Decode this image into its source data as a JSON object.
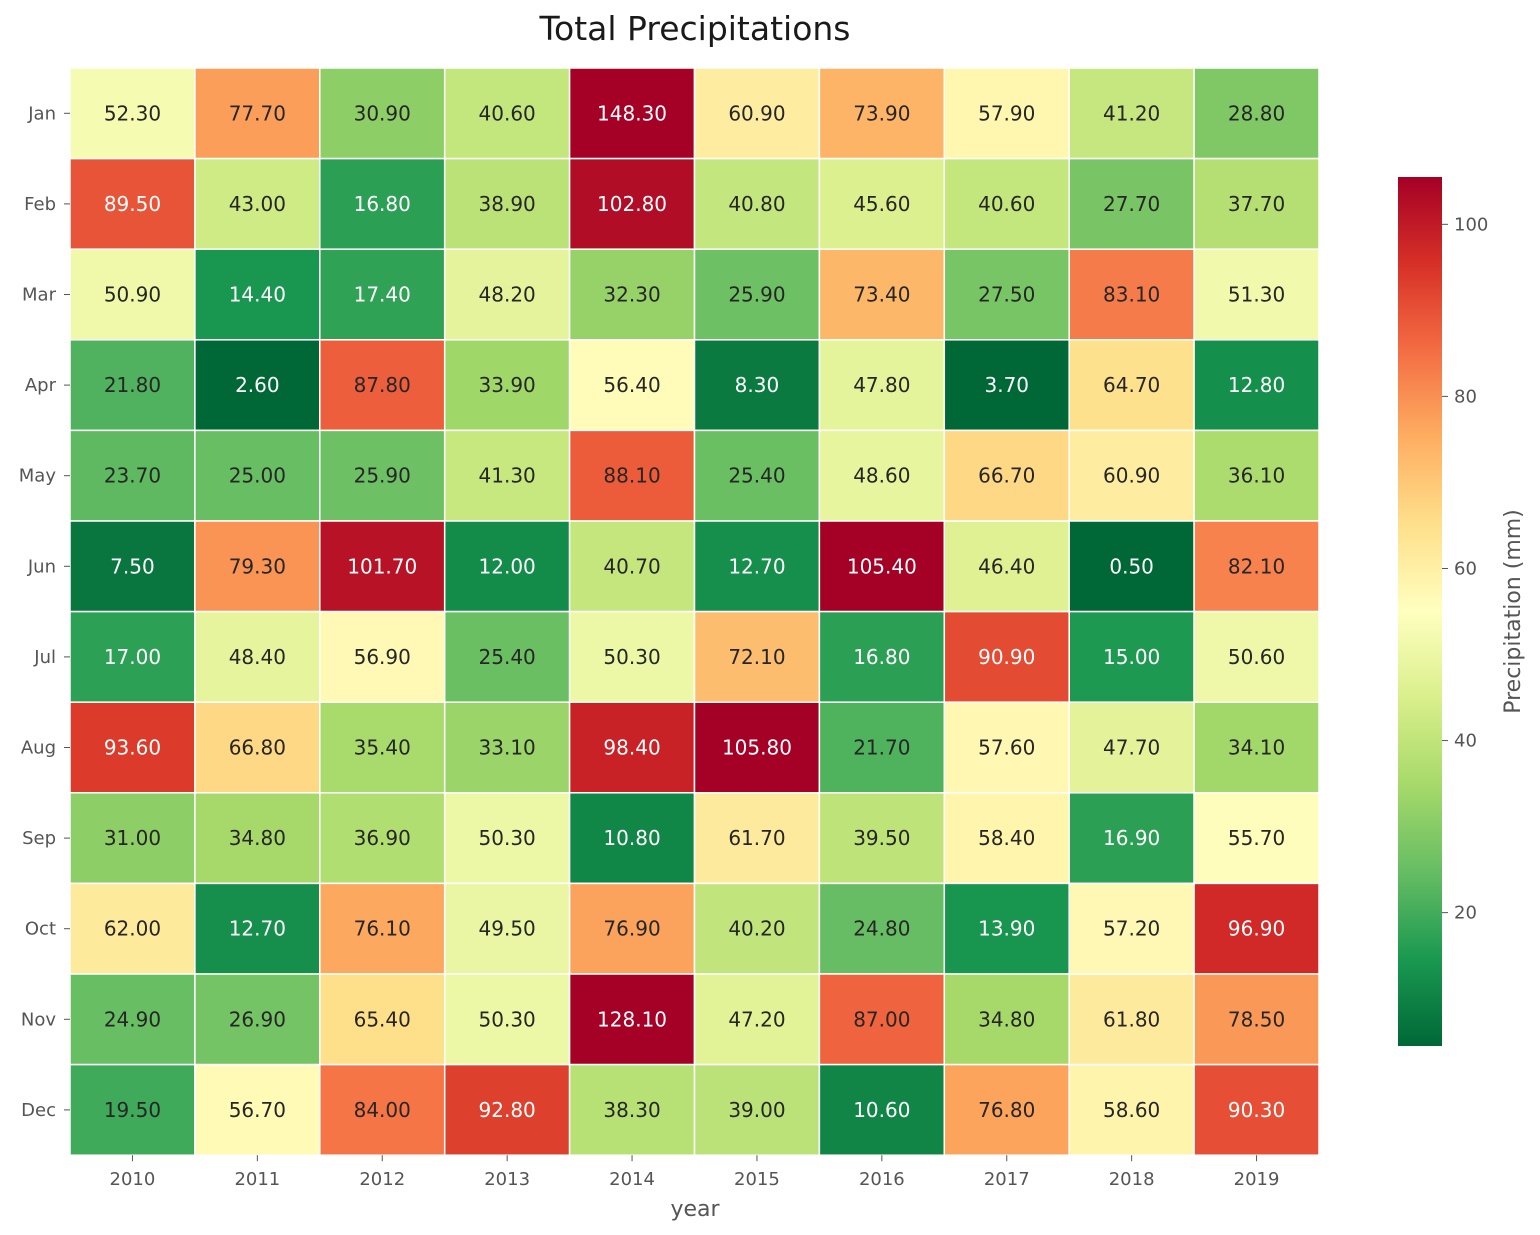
{
  "chart_data": {
    "type": "heatmap",
    "title": "Total Precipitations",
    "xlabel": "year",
    "ylabel": "",
    "x_categories": [
      "2010",
      "2011",
      "2012",
      "2013",
      "2014",
      "2015",
      "2016",
      "2017",
      "2018",
      "2019"
    ],
    "y_categories": [
      "Jan",
      "Feb",
      "Mar",
      "Apr",
      "May",
      "Jun",
      "Jul",
      "Aug",
      "Sep",
      "Oct",
      "Nov",
      "Dec"
    ],
    "values": [
      [
        52.3,
        77.7,
        30.9,
        40.6,
        148.3,
        60.9,
        73.9,
        57.9,
        41.2,
        28.8
      ],
      [
        89.5,
        43.0,
        16.8,
        38.9,
        102.8,
        40.8,
        45.6,
        40.6,
        27.7,
        37.7
      ],
      [
        50.9,
        14.4,
        17.4,
        48.2,
        32.3,
        25.9,
        73.4,
        27.5,
        83.1,
        51.3
      ],
      [
        21.8,
        2.6,
        87.8,
        33.9,
        56.4,
        8.3,
        47.8,
        3.7,
        64.7,
        12.8
      ],
      [
        23.7,
        25.0,
        25.9,
        41.3,
        88.1,
        25.4,
        48.6,
        66.7,
        60.9,
        36.1
      ],
      [
        7.5,
        79.3,
        101.7,
        12.0,
        40.7,
        12.7,
        105.4,
        46.4,
        0.5,
        82.1
      ],
      [
        17.0,
        48.4,
        56.9,
        25.4,
        50.3,
        72.1,
        16.8,
        90.9,
        15.0,
        50.6
      ],
      [
        93.6,
        66.8,
        35.4,
        33.1,
        98.4,
        105.8,
        21.7,
        57.6,
        47.7,
        34.1
      ],
      [
        31.0,
        34.8,
        36.9,
        50.3,
        10.8,
        61.7,
        39.5,
        58.4,
        16.9,
        55.7
      ],
      [
        62.0,
        12.7,
        76.1,
        49.5,
        76.9,
        40.2,
        24.8,
        13.9,
        57.2,
        96.9
      ],
      [
        24.9,
        26.9,
        65.4,
        50.3,
        128.1,
        47.2,
        87.0,
        34.8,
        61.8,
        78.5
      ],
      [
        19.5,
        56.7,
        84.0,
        92.8,
        38.3,
        39.0,
        10.6,
        76.8,
        58.6,
        90.3
      ]
    ],
    "value_format": "%.2f",
    "colormap": "RdYlGn_r",
    "vmin": 4.5,
    "vmax": 105.5,
    "colorbar": {
      "label": "Precipitation (mm)",
      "ticks": [
        20,
        40,
        60,
        80,
        100
      ]
    },
    "grid": false,
    "cell_border_color": "#ffffff",
    "text_color_dark": "#262626",
    "text_color_light": "#ffffff"
  }
}
